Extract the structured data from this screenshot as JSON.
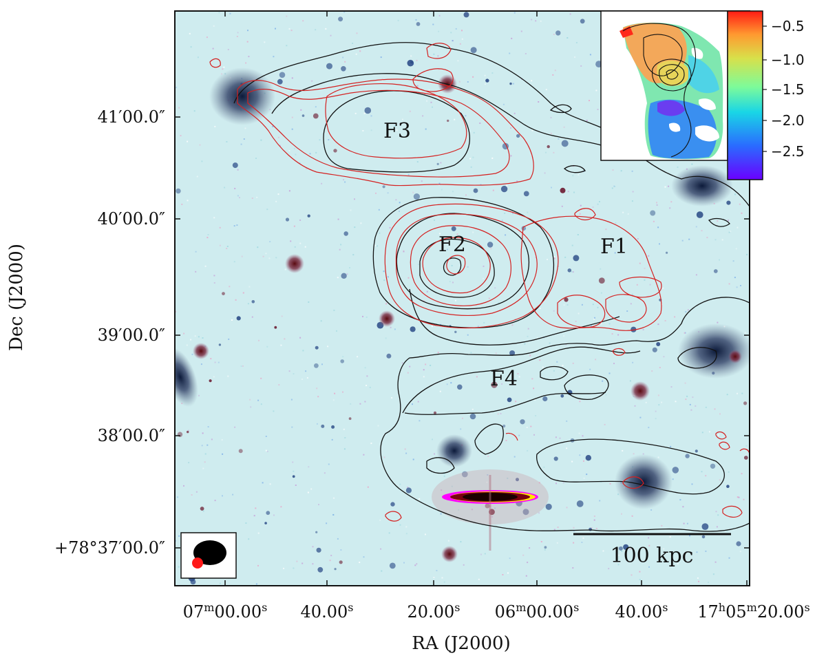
{
  "figure": {
    "xlabel": "RA (J2000)",
    "ylabel": "Dec (J2000)",
    "ra_ticks": [
      {
        "main": "07",
        "sup1": "m",
        "rest": "00.00",
        "sup2": "s"
      },
      {
        "main": "",
        "sup1": "",
        "rest": "40.00",
        "sup2": "s"
      },
      {
        "main": "",
        "sup1": "",
        "rest": "20.00",
        "sup2": "s"
      },
      {
        "main": "06",
        "sup1": "m",
        "rest": "00.00",
        "sup2": "s"
      },
      {
        "main": "",
        "sup1": "",
        "rest": "40.00",
        "sup2": "s"
      },
      {
        "main": "17",
        "sup1": "h",
        "rest": "05",
        "sup2": "m",
        "rest2": "20.00",
        "sup3": "s"
      }
    ],
    "dec_ticks": [
      "41′00.0″",
      "40′00.0″",
      "39′00.0″",
      "38′00.0″",
      "+78°37′00.0″"
    ],
    "features": {
      "f1": "F1",
      "f2": "F2",
      "f3": "F3",
      "f4": "F4"
    },
    "scalebar_label": "100 kpc",
    "colors": {
      "background": "#cfecef",
      "red_contour": "#d42020",
      "black_contour": "#111111",
      "galaxy": "#2f3e5e",
      "beam_black": "#000000",
      "beam_red": "#ff1a1a"
    },
    "inset": {
      "colorbar_ticks": [
        "−0.5",
        "−1.0",
        "−1.5",
        "−2.0",
        "−2.5"
      ],
      "colormap": "rainbow"
    }
  }
}
